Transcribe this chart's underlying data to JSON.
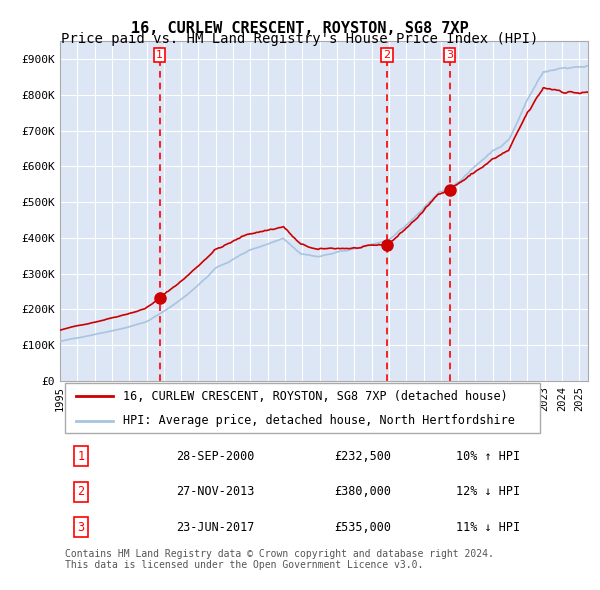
{
  "title": "16, CURLEW CRESCENT, ROYSTON, SG8 7XP",
  "subtitle": "Price paid vs. HM Land Registry's House Price Index (HPI)",
  "xlabel": "",
  "ylabel": "",
  "ylim": [
    0,
    950000
  ],
  "yticks": [
    0,
    100000,
    200000,
    300000,
    400000,
    500000,
    600000,
    700000,
    800000,
    900000
  ],
  "ytick_labels": [
    "£0",
    "£100K",
    "£200K",
    "£300K",
    "£400K",
    "£500K",
    "£600K",
    "£700K",
    "£800K",
    "£900K"
  ],
  "xlim_start": 1995.0,
  "xlim_end": 2025.5,
  "xticks": [
    1995,
    1996,
    1997,
    1998,
    1999,
    2000,
    2001,
    2002,
    2003,
    2004,
    2005,
    2006,
    2007,
    2008,
    2009,
    2010,
    2011,
    2012,
    2013,
    2014,
    2015,
    2016,
    2017,
    2018,
    2019,
    2020,
    2021,
    2022,
    2023,
    2024,
    2025
  ],
  "background_color": "#dce6f5",
  "plot_bg_color": "#dce6f5",
  "fig_bg_color": "#ffffff",
  "red_line_color": "#cc0000",
  "blue_line_color": "#a8c4e0",
  "grid_color": "#ffffff",
  "dashed_line_color": "#ff0000",
  "sale_marker_color": "#cc0000",
  "sale_marker_size": 8,
  "sale1_x": 2000.75,
  "sale1_y": 232500,
  "sale2_x": 2013.9,
  "sale2_y": 380000,
  "sale3_x": 2017.5,
  "sale3_y": 535000,
  "legend_label_red": "16, CURLEW CRESCENT, ROYSTON, SG8 7XP (detached house)",
  "legend_label_blue": "HPI: Average price, detached house, North Hertfordshire",
  "table_rows": [
    [
      "1",
      "28-SEP-2000",
      "£232,500",
      "10% ↑ HPI"
    ],
    [
      "2",
      "27-NOV-2013",
      "£380,000",
      "12% ↓ HPI"
    ],
    [
      "3",
      "23-JUN-2017",
      "£535,000",
      "11% ↓ HPI"
    ]
  ],
  "footer": "Contains HM Land Registry data © Crown copyright and database right 2024.\nThis data is licensed under the Open Government Licence v3.0.",
  "title_fontsize": 11,
  "subtitle_fontsize": 10,
  "tick_fontsize": 8,
  "legend_fontsize": 8.5,
  "table_fontsize": 8.5,
  "footer_fontsize": 7
}
